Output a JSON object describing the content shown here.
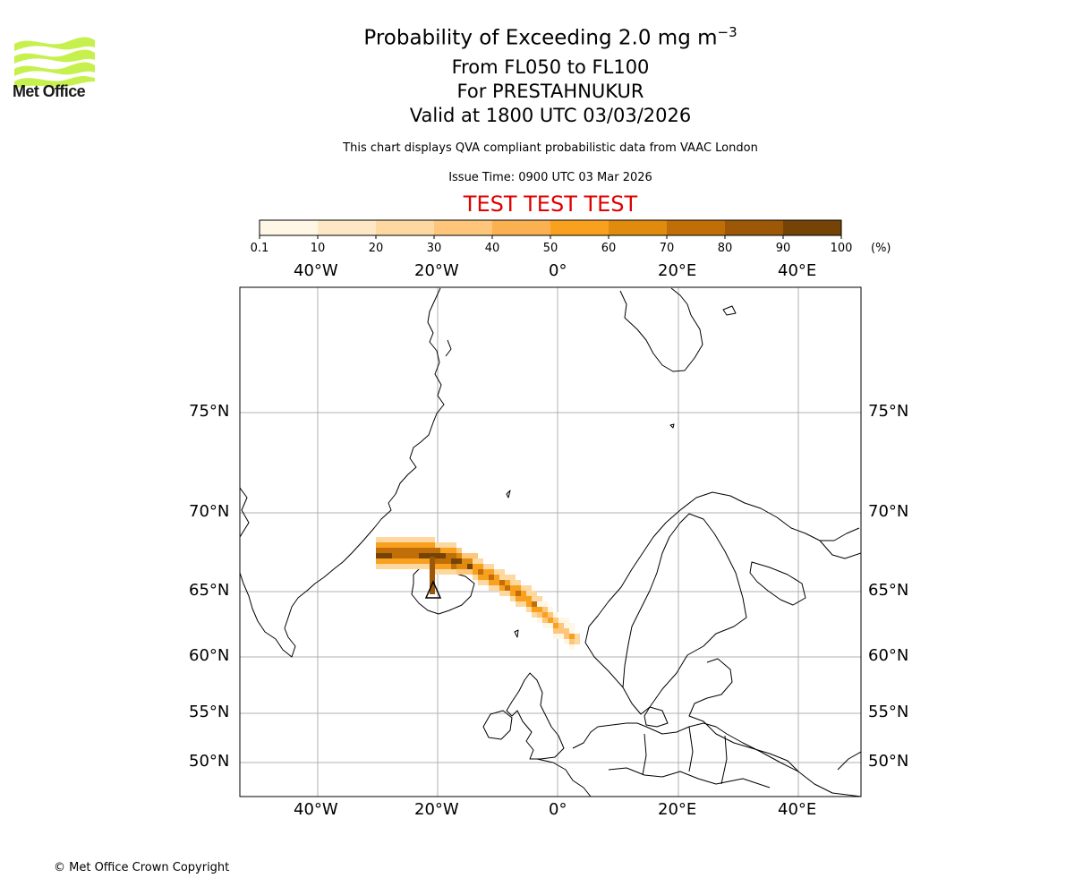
{
  "header": {
    "logo_text": "Met Office",
    "title_main": "Probability of Exceeding 2.0 mg m",
    "title_sup": "−3",
    "range": "From FL050 to FL100",
    "volcano_line": "For PRESTAHNUKUR",
    "valid_line": "Valid at 1800 UTC 03/03/2026",
    "disclaimer": "This chart displays QVA compliant probabilistic data from VAAC London",
    "issue_time": "Issue Time: 0900 UTC 03 Mar 2026",
    "test_banner": "TEST TEST TEST"
  },
  "colorbar": {
    "labels": [
      "0.1",
      "10",
      "20",
      "30",
      "40",
      "50",
      "60",
      "70",
      "80",
      "90",
      "100"
    ],
    "colors": [
      "#fff7e6",
      "#fee7c4",
      "#fdd8a0",
      "#fdc67a",
      "#fbb151",
      "#f9a01e",
      "#e08a0e",
      "#c06e08",
      "#9c5806",
      "#744305"
    ],
    "unit": "(%)"
  },
  "map": {
    "lon_labels": [
      "40°W",
      "20°W",
      "0°",
      "20°E",
      "40°E"
    ],
    "lat_labels": [
      "75°N",
      "70°N",
      "65°N",
      "60°N",
      "55°N",
      "50°N"
    ],
    "volcano_marker": "triangle",
    "plume_color_max": "#744305"
  },
  "footer": {
    "copyright": "© Met Office Crown Copyright"
  }
}
